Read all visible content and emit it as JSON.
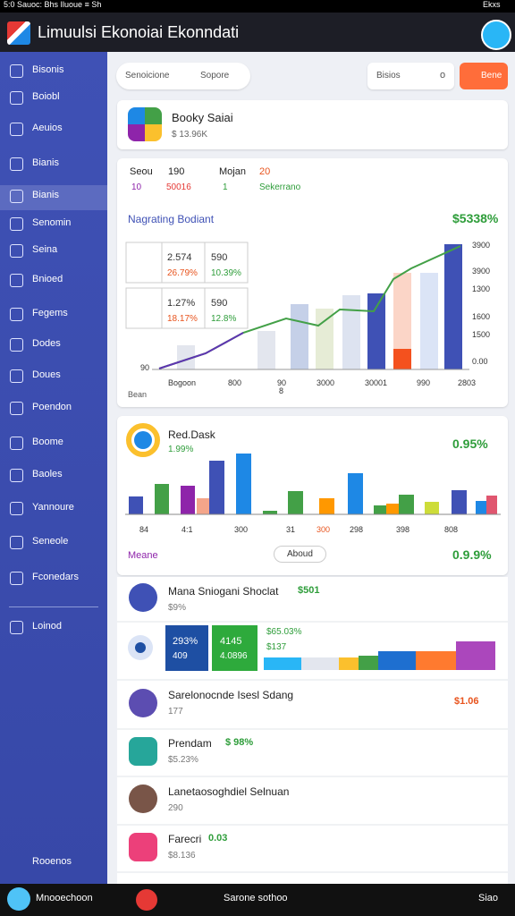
{
  "status_bar": {
    "left": "5:0  Sauoc: Bhs Iluoue ≡ Sh",
    "right": "Ekxs"
  },
  "header": {
    "title": "Limuulsi Ekonoiai Ekonndati"
  },
  "sidebar": {
    "items": [
      "Bisonis",
      "Boiobl",
      "Aeuios",
      "Bianis",
      "Bianis",
      "Senomin",
      "Seina",
      "Bnioed",
      "Fegems",
      "Dodes",
      "Doues",
      "Poendon",
      "Boome",
      "Baoles",
      "Yannoure",
      "Seneole",
      "Fconedars",
      "Loinod"
    ],
    "footer": "Rooenos"
  },
  "toolbar": {
    "search": "Senoicione",
    "filter": "Sopore",
    "search2": "Bisios",
    "toggle": "o",
    "button": "Bene"
  },
  "profile_card": {
    "name": "Booky Saiai",
    "value": "$ 13.96K"
  },
  "stats": {
    "labels": [
      "Seou",
      "190",
      "Mojan",
      "20"
    ],
    "values": [
      "10",
      "50016",
      "1",
      "Sekerrano"
    ]
  },
  "main_chart": {
    "title": "Nagrating Bodiant",
    "change": "$5338%",
    "tiles": [
      {
        "a": "2.574",
        "b": "26.79%",
        "c": "590",
        "d": "10.39%"
      },
      {
        "a": "1.27%",
        "b": "18.17%",
        "c": "590",
        "d": "12.8%"
      }
    ],
    "y_left": "90",
    "y_right": [
      "3900",
      "3900",
      "1300",
      "1600",
      "1500",
      "0.00"
    ],
    "x_labels": [
      "Bogoon",
      "800",
      "90",
      "8",
      "3000",
      "30001",
      "990",
      "2803"
    ],
    "footer": "Bean"
  },
  "second_chart": {
    "title": "Red.Dask",
    "subtitle": "1.99%",
    "change": "0.95%",
    "x_labels": [
      "84",
      "4:1",
      "300",
      "31",
      "300",
      "298",
      "398",
      "808"
    ],
    "footer_label": "Meane",
    "dropdown": "Aboud",
    "footer_change": "0.9.9%"
  },
  "list": {
    "rows": [
      {
        "title": "Mana Sniogani Shoclat",
        "badge": "$501",
        "sub": "$9%"
      },
      {
        "title": "Sarelonocnde Isesl Sdang",
        "badge": "$1.06",
        "sub": "177"
      },
      {
        "title": "Prendam",
        "badge": "$ 98%",
        "sub": "$5.23%"
      },
      {
        "title": "Lanetaosoghdiel Selnuan",
        "badge": "",
        "sub": "290"
      },
      {
        "title": "Farecri",
        "badge": "0.03",
        "sub": "$8.136"
      }
    ]
  },
  "stats_row": {
    "tile1": "293%",
    "tile1b": "409",
    "tile2": "4145",
    "tile2b": "4.0896",
    "text": "$65.03%",
    "text2": "$137"
  },
  "bottom_bar": {
    "user": "Mnooechoon",
    "center": "Sarone sothoo",
    "right": "Siao"
  }
}
